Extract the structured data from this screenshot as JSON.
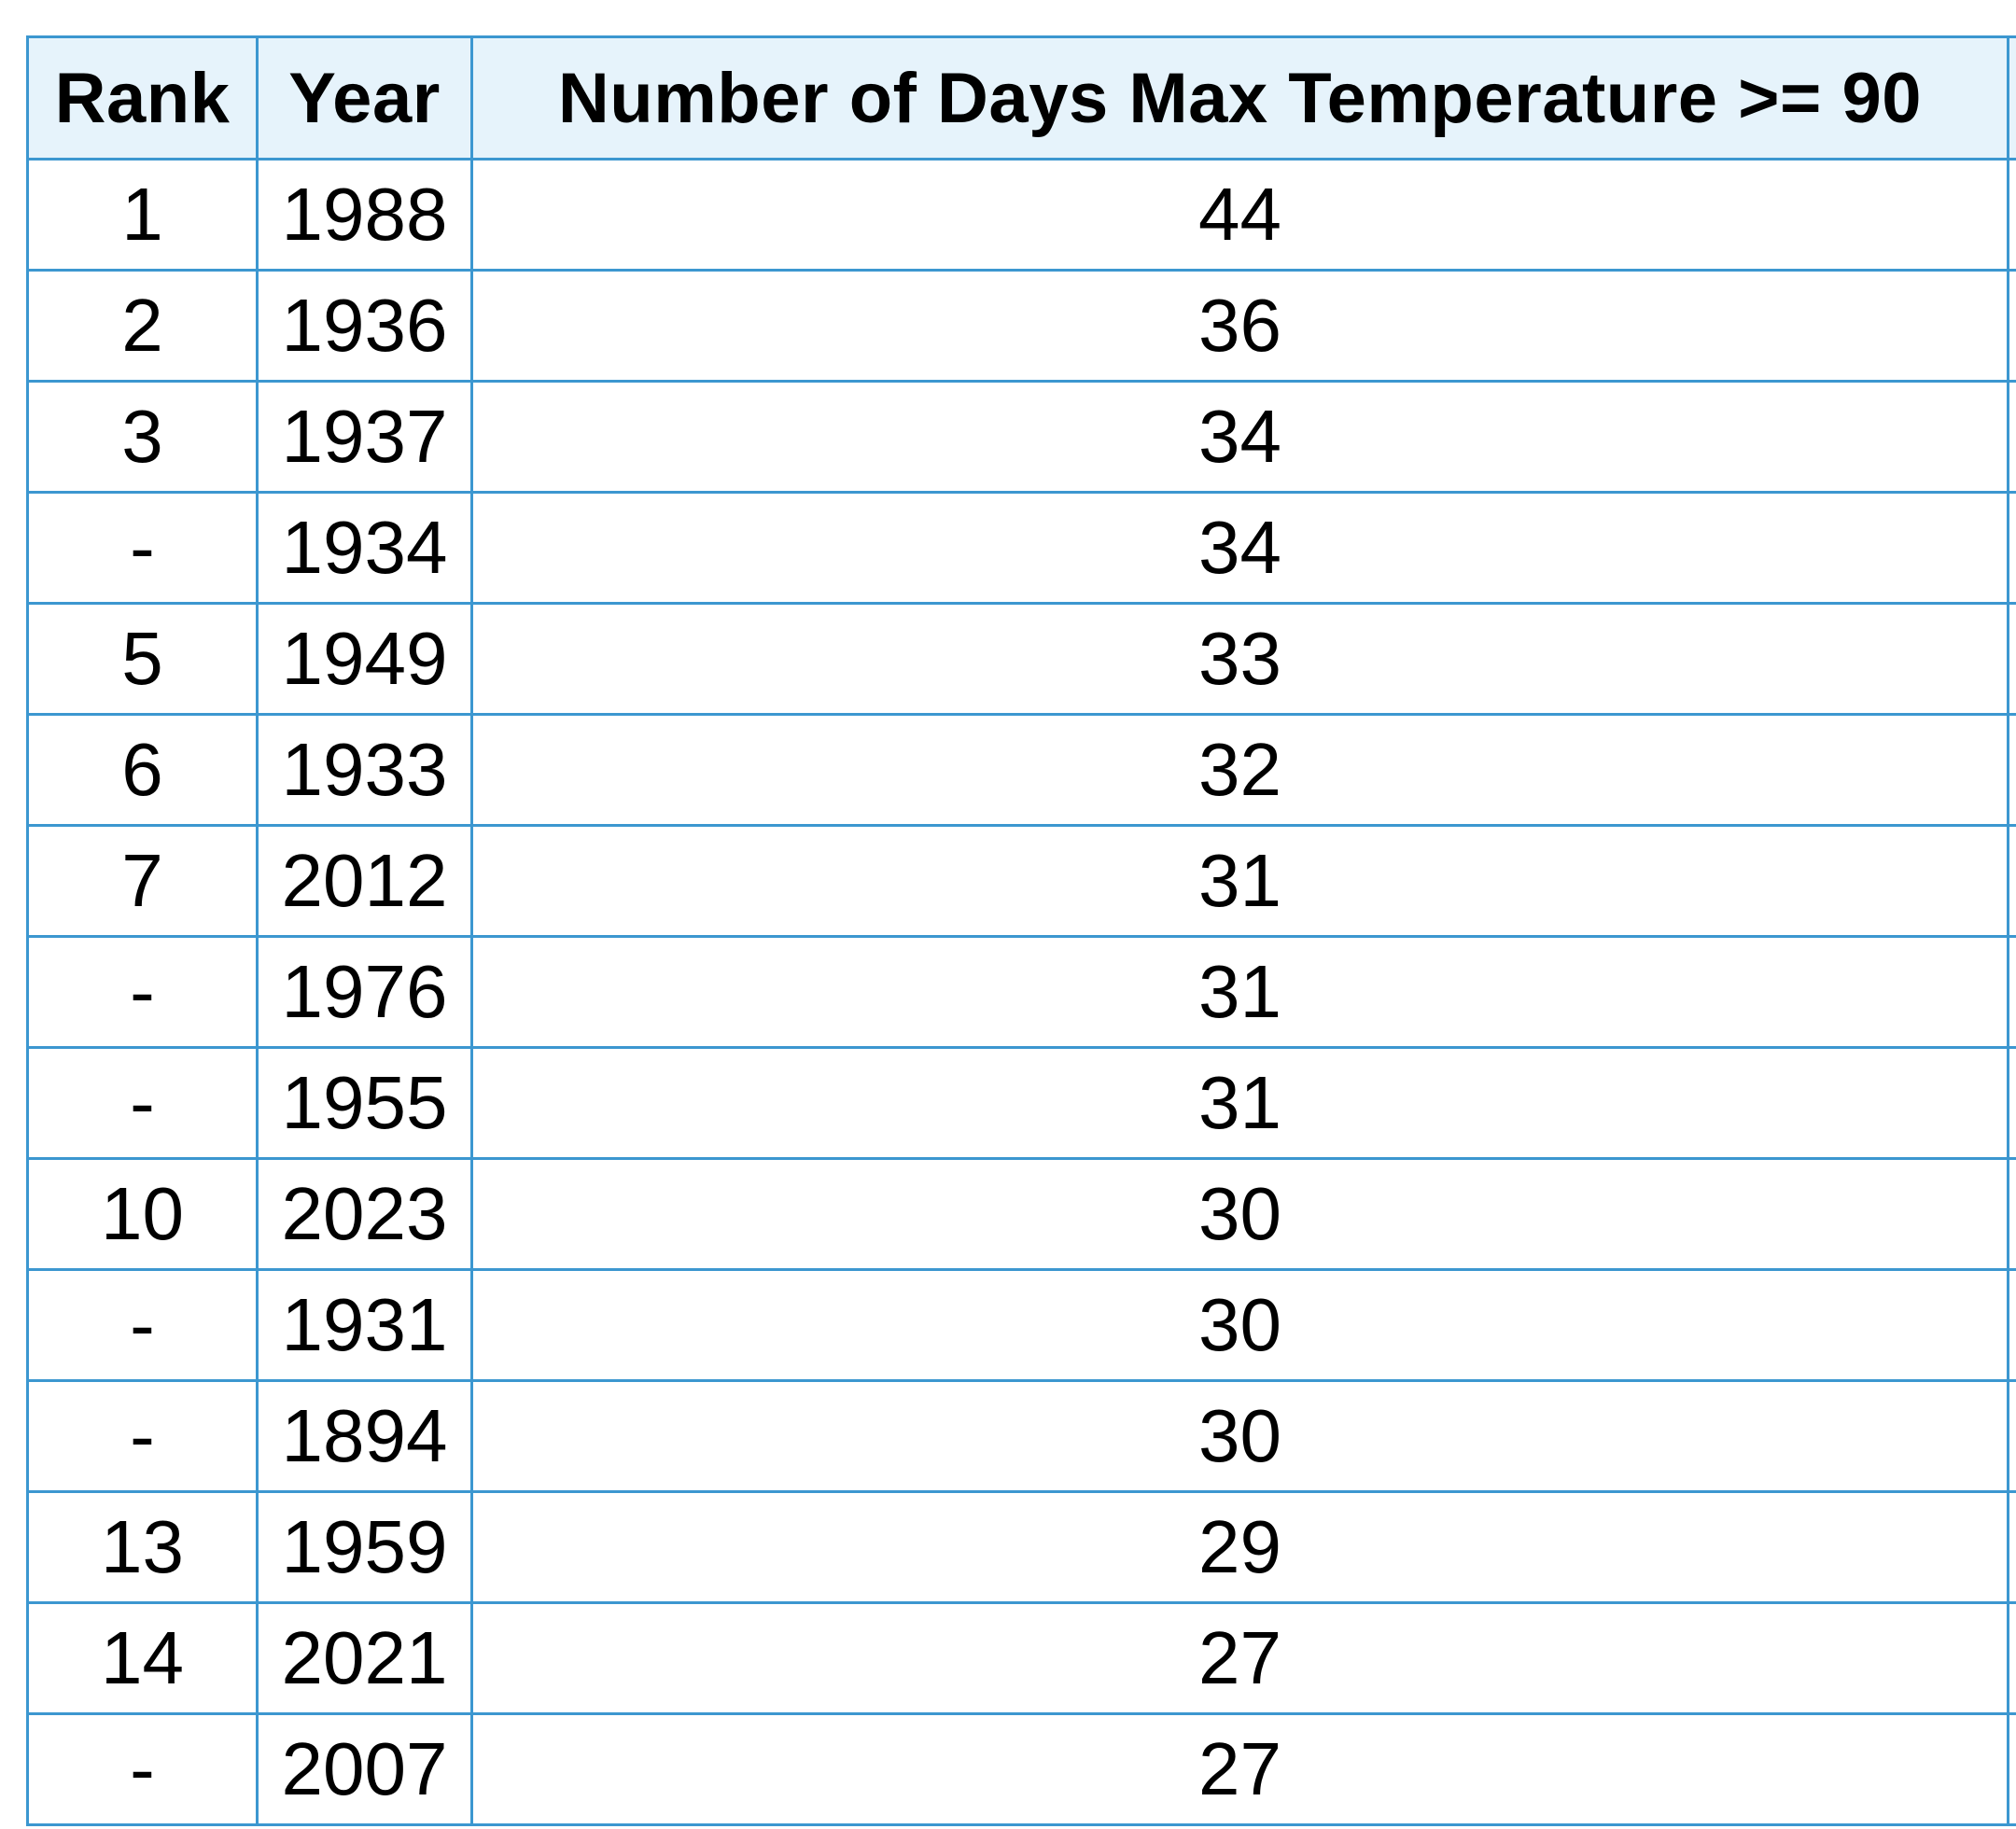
{
  "table": {
    "headers": {
      "rank": "Rank",
      "year": "Year",
      "days": "Number of Days Max Temperature >= 90"
    },
    "rows": [
      {
        "rank": "1",
        "year": "1988",
        "days": "44"
      },
      {
        "rank": "2",
        "year": "1936",
        "days": "36"
      },
      {
        "rank": "3",
        "year": "1937",
        "days": "34"
      },
      {
        "rank": "-",
        "year": "1934",
        "days": "34"
      },
      {
        "rank": "5",
        "year": "1949",
        "days": "33"
      },
      {
        "rank": "6",
        "year": "1933",
        "days": "32"
      },
      {
        "rank": "7",
        "year": "2012",
        "days": "31"
      },
      {
        "rank": "-",
        "year": "1976",
        "days": "31"
      },
      {
        "rank": "-",
        "year": "1955",
        "days": "31"
      },
      {
        "rank": "10",
        "year": "2023",
        "days": "30"
      },
      {
        "rank": "-",
        "year": "1931",
        "days": "30"
      },
      {
        "rank": "-",
        "year": "1894",
        "days": "30"
      },
      {
        "rank": "13",
        "year": "1959",
        "days": "29"
      },
      {
        "rank": "14",
        "year": "2021",
        "days": "27"
      },
      {
        "rank": "-",
        "year": "2007",
        "days": "27"
      }
    ]
  },
  "colors": {
    "border": "#3c97d0",
    "header_background": "#e6f3fb",
    "cell_background": "#ffffff",
    "text": "#000000"
  }
}
